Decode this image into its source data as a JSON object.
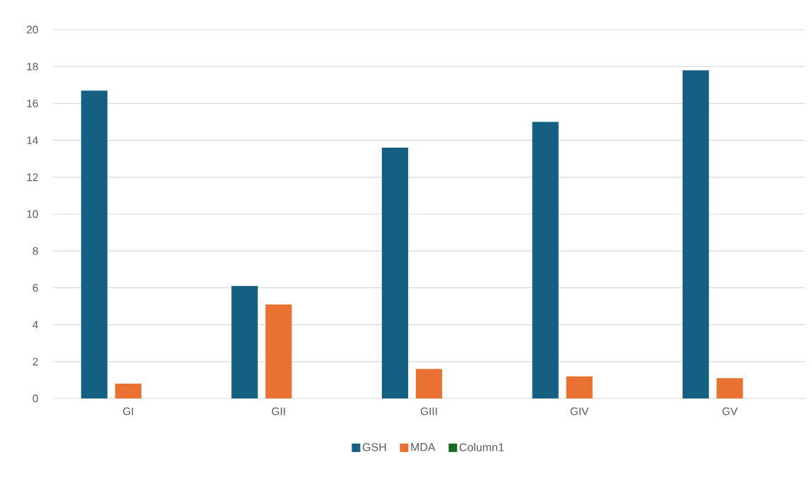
{
  "chart_data": {
    "type": "bar",
    "categories": [
      "GI",
      "GII",
      "GIII",
      "GIV",
      "GV"
    ],
    "series": [
      {
        "name": "GSH",
        "color": "#156082",
        "values": [
          16.7,
          6.1,
          13.6,
          15.0,
          17.8
        ]
      },
      {
        "name": "MDA",
        "color": "#e97132",
        "values": [
          0.8,
          5.1,
          1.6,
          1.2,
          1.1
        ]
      },
      {
        "name": "Column1",
        "color": "#196b24",
        "values": [
          null,
          null,
          null,
          null,
          null
        ]
      }
    ],
    "ylim": [
      0,
      20
    ],
    "yticks": [
      0,
      2,
      4,
      6,
      8,
      10,
      12,
      14,
      16,
      18,
      20
    ],
    "grid": "y",
    "legend": "bottom"
  }
}
